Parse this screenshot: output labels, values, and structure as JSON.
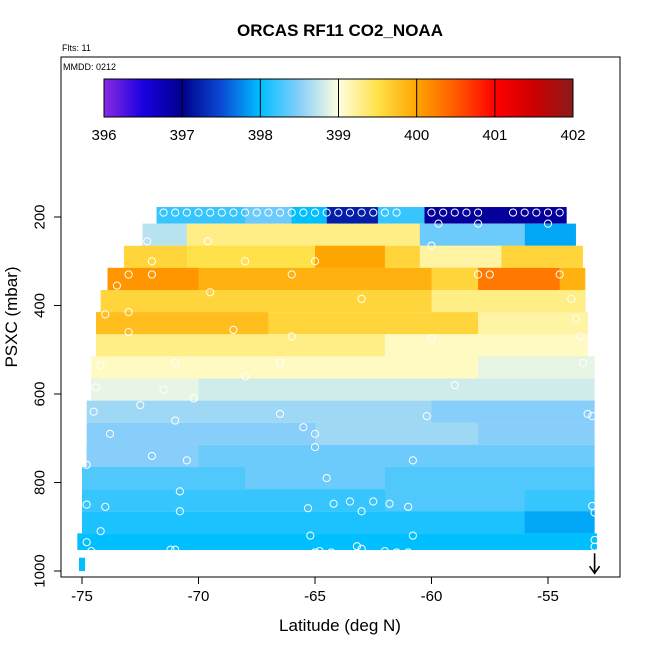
{
  "chart_data": {
    "type": "heatmap",
    "title": "ORCAS RF11 CO2_NOAA",
    "annotations": [
      "Flts: 11",
      "MMDD: 0212"
    ],
    "xlabel": "Latitude (deg N)",
    "ylabel": "PSXC (mbar)",
    "xlim": [
      -75.5,
      -52.5
    ],
    "ylim": [
      1000,
      60
    ],
    "y_reversed": true,
    "x_ticks": [
      -75,
      -70,
      -65,
      -60,
      -55
    ],
    "y_ticks": [
      200,
      400,
      600,
      800,
      1000
    ],
    "colorbar": {
      "ticks": [
        396,
        397,
        398,
        399,
        400,
        401,
        402
      ],
      "range": [
        396,
        402
      ],
      "stops": [
        {
          "v": 396.0,
          "c": "#8a2be2"
        },
        {
          "v": 396.5,
          "c": "#1a00e0"
        },
        {
          "v": 397.0,
          "c": "#00008b"
        },
        {
          "v": 397.5,
          "c": "#0a4ad6"
        },
        {
          "v": 398.0,
          "c": "#00bfff"
        },
        {
          "v": 398.5,
          "c": "#87cefa"
        },
        {
          "v": 399.0,
          "c": "#ffffe0"
        },
        {
          "v": 399.5,
          "c": "#ffe14a"
        },
        {
          "v": 400.0,
          "c": "#ffa500"
        },
        {
          "v": 400.5,
          "c": "#ff5a00"
        },
        {
          "v": 401.0,
          "c": "#ff0000"
        },
        {
          "v": 401.5,
          "c": "#cc0000"
        },
        {
          "v": 402.0,
          "c": "#8b1a1a"
        }
      ]
    },
    "layers": [
      {
        "p": 190,
        "x0": -71.8,
        "x1": -54.2,
        "base": 398.2,
        "segments": [
          [
            -64.5,
            -62.3,
            397.2
          ],
          [
            -60.3,
            -54.2,
            396.9
          ],
          [
            -68.0,
            -66.0,
            398.4
          ],
          [
            -66.0,
            -64.5,
            398.0
          ]
        ]
      },
      {
        "p": 240,
        "x0": -72.4,
        "x1": -53.8,
        "base": 399.3,
        "segments": [
          [
            -60.5,
            -56.0,
            398.4
          ],
          [
            -56.0,
            -53.8,
            397.9
          ],
          [
            -72.4,
            -70.5,
            398.7
          ]
        ]
      },
      {
        "p": 290,
        "x0": -73.2,
        "x1": -53.5,
        "base": 399.6,
        "segments": [
          [
            -70.5,
            -65.0,
            399.5
          ],
          [
            -65.0,
            -62.0,
            400.0
          ],
          [
            -60.5,
            -57.0,
            399.2
          ]
        ]
      },
      {
        "p": 340,
        "x0": -73.9,
        "x1": -53.4,
        "base": 399.9,
        "segments": [
          [
            -73.9,
            -70.0,
            400.1
          ],
          [
            -60.0,
            -56.5,
            399.6
          ],
          [
            -58.0,
            -54.5,
            400.3
          ]
        ]
      },
      {
        "p": 390,
        "x0": -74.2,
        "x1": -53.4,
        "base": 399.6,
        "segments": [
          [
            -60.0,
            -53.4,
            399.3
          ]
        ]
      },
      {
        "p": 440,
        "x0": -74.4,
        "x1": -53.3,
        "base": 399.6,
        "segments": [
          [
            -74.4,
            -67.0,
            399.8
          ],
          [
            -58.0,
            -53.3,
            399.2
          ]
        ]
      },
      {
        "p": 490,
        "x0": -74.4,
        "x1": -53.3,
        "base": 399.3,
        "segments": [
          [
            -62.0,
            -53.3,
            399.1
          ]
        ]
      },
      {
        "p": 540,
        "x0": -74.6,
        "x1": -53.0,
        "base": 399.1,
        "segments": [
          [
            -58.0,
            -53.0,
            398.9
          ]
        ]
      },
      {
        "p": 590,
        "x0": -74.6,
        "x1": -53.0,
        "base": 398.8,
        "segments": [
          [
            -74.6,
            -70.0,
            398.9
          ]
        ]
      },
      {
        "p": 640,
        "x0": -74.8,
        "x1": -53.0,
        "base": 398.6,
        "segments": [
          [
            -60.0,
            -53.0,
            398.5
          ]
        ]
      },
      {
        "p": 690,
        "x0": -74.8,
        "x1": -53.0,
        "base": 398.5,
        "segments": [
          [
            -65.0,
            -58.0,
            398.6
          ]
        ]
      },
      {
        "p": 740,
        "x0": -74.8,
        "x1": -53.0,
        "base": 398.4,
        "segments": [
          [
            -74.8,
            -70.0,
            398.5
          ]
        ]
      },
      {
        "p": 790,
        "x0": -75.0,
        "x1": -53.0,
        "base": 398.3,
        "segments": [
          [
            -68.0,
            -62.0,
            398.4
          ]
        ]
      },
      {
        "p": 840,
        "x0": -75.0,
        "x1": -53.0,
        "base": 398.2,
        "segments": [
          [
            -62.0,
            -56.0,
            398.3
          ]
        ]
      },
      {
        "p": 890,
        "x0": -75.0,
        "x1": -53.0,
        "base": 398.1,
        "segments": [
          [
            -56.0,
            -53.0,
            397.9
          ]
        ]
      },
      {
        "p": 940,
        "x0": -75.2,
        "x1": -52.9,
        "base": 398.0,
        "segments": []
      }
    ],
    "points": [
      {
        "x": -71.5,
        "y": 190
      },
      {
        "x": -71.0,
        "y": 190
      },
      {
        "x": -70.5,
        "y": 190
      },
      {
        "x": -70.0,
        "y": 190
      },
      {
        "x": -69.5,
        "y": 190
      },
      {
        "x": -69.0,
        "y": 190
      },
      {
        "x": -68.5,
        "y": 190
      },
      {
        "x": -68.0,
        "y": 190
      },
      {
        "x": -67.5,
        "y": 190
      },
      {
        "x": -67.0,
        "y": 190
      },
      {
        "x": -66.5,
        "y": 190
      },
      {
        "x": -66.0,
        "y": 190
      },
      {
        "x": -65.5,
        "y": 190
      },
      {
        "x": -65.0,
        "y": 190
      },
      {
        "x": -64.5,
        "y": 190
      },
      {
        "x": -64.0,
        "y": 190
      },
      {
        "x": -63.5,
        "y": 190
      },
      {
        "x": -63.0,
        "y": 190
      },
      {
        "x": -62.5,
        "y": 190
      },
      {
        "x": -62.0,
        "y": 190
      },
      {
        "x": -61.5,
        "y": 190
      },
      {
        "x": -60.0,
        "y": 190
      },
      {
        "x": -59.5,
        "y": 190
      },
      {
        "x": -59.0,
        "y": 190
      },
      {
        "x": -58.5,
        "y": 190
      },
      {
        "x": -58.0,
        "y": 190
      },
      {
        "x": -56.5,
        "y": 190
      },
      {
        "x": -56.0,
        "y": 190
      },
      {
        "x": -55.5,
        "y": 190
      },
      {
        "x": -55.0,
        "y": 190
      },
      {
        "x": -54.5,
        "y": 190
      },
      {
        "x": -59.7,
        "y": 215
      },
      {
        "x": -58.0,
        "y": 215
      },
      {
        "x": -55.0,
        "y": 215
      },
      {
        "x": -72.2,
        "y": 255
      },
      {
        "x": -69.6,
        "y": 255
      },
      {
        "x": -60.0,
        "y": 265
      },
      {
        "x": -68.0,
        "y": 300
      },
      {
        "x": -65.0,
        "y": 300
      },
      {
        "x": -72.0,
        "y": 300
      },
      {
        "x": -73.0,
        "y": 330
      },
      {
        "x": -72.0,
        "y": 330
      },
      {
        "x": -66.0,
        "y": 330
      },
      {
        "x": -58.0,
        "y": 330
      },
      {
        "x": -57.5,
        "y": 330
      },
      {
        "x": -54.5,
        "y": 330
      },
      {
        "x": -73.5,
        "y": 355
      },
      {
        "x": -69.5,
        "y": 370
      },
      {
        "x": -63.0,
        "y": 385
      },
      {
        "x": -54.0,
        "y": 385
      },
      {
        "x": -74.0,
        "y": 420
      },
      {
        "x": -73.0,
        "y": 415
      },
      {
        "x": -68.5,
        "y": 455
      },
      {
        "x": -53.8,
        "y": 430
      },
      {
        "x": -73.0,
        "y": 460
      },
      {
        "x": -66.0,
        "y": 470
      },
      {
        "x": -60.0,
        "y": 475
      },
      {
        "x": -53.6,
        "y": 470
      },
      {
        "x": -74.2,
        "y": 535
      },
      {
        "x": -71.0,
        "y": 530
      },
      {
        "x": -66.5,
        "y": 530
      },
      {
        "x": -53.5,
        "y": 530
      },
      {
        "x": -74.4,
        "y": 585
      },
      {
        "x": -71.5,
        "y": 590
      },
      {
        "x": -68.0,
        "y": 560
      },
      {
        "x": -59.0,
        "y": 580
      },
      {
        "x": -74.5,
        "y": 640
      },
      {
        "x": -72.5,
        "y": 625
      },
      {
        "x": -70.2,
        "y": 610
      },
      {
        "x": -71.0,
        "y": 660
      },
      {
        "x": -66.5,
        "y": 645
      },
      {
        "x": -65.5,
        "y": 675
      },
      {
        "x": -65.0,
        "y": 690
      },
      {
        "x": -60.2,
        "y": 650
      },
      {
        "x": -53.3,
        "y": 645
      },
      {
        "x": -53.1,
        "y": 650
      },
      {
        "x": -73.8,
        "y": 690
      },
      {
        "x": -74.8,
        "y": 760
      },
      {
        "x": -72.0,
        "y": 740
      },
      {
        "x": -70.5,
        "y": 750
      },
      {
        "x": -65.0,
        "y": 720
      },
      {
        "x": -60.8,
        "y": 750
      },
      {
        "x": -64.5,
        "y": 790
      },
      {
        "x": -74.8,
        "y": 850
      },
      {
        "x": -74.0,
        "y": 855
      },
      {
        "x": -70.8,
        "y": 820
      },
      {
        "x": -70.8,
        "y": 865
      },
      {
        "x": -64.2,
        "y": 848
      },
      {
        "x": -63.5,
        "y": 843
      },
      {
        "x": -62.5,
        "y": 843
      },
      {
        "x": -61.8,
        "y": 848
      },
      {
        "x": -63.0,
        "y": 865
      },
      {
        "x": -65.3,
        "y": 858
      },
      {
        "x": -61.0,
        "y": 855
      },
      {
        "x": -53.1,
        "y": 853
      },
      {
        "x": -53.0,
        "y": 868
      },
      {
        "x": -74.2,
        "y": 910
      },
      {
        "x": -74.8,
        "y": 935
      },
      {
        "x": -74.6,
        "y": 955
      },
      {
        "x": -74.8,
        "y": 962
      },
      {
        "x": -71.2,
        "y": 952
      },
      {
        "x": -71.0,
        "y": 952
      },
      {
        "x": -65.0,
        "y": 958
      },
      {
        "x": -64.8,
        "y": 955
      },
      {
        "x": -64.3,
        "y": 958
      },
      {
        "x": -63.2,
        "y": 944
      },
      {
        "x": -63.0,
        "y": 950
      },
      {
        "x": -62.0,
        "y": 955
      },
      {
        "x": -61.5,
        "y": 958
      },
      {
        "x": -61.0,
        "y": 958
      },
      {
        "x": -60.8,
        "y": 920
      },
      {
        "x": -65.2,
        "y": 920
      },
      {
        "x": -53.0,
        "y": 930
      },
      {
        "x": -53.0,
        "y": 945
      }
    ],
    "surface_marker": {
      "x": -75.0,
      "p_top": 970,
      "p_bottom": 1000,
      "value": 398.0
    },
    "arrow": {
      "x": -53.0,
      "p_top": 960,
      "p_bottom": 1005
    }
  }
}
